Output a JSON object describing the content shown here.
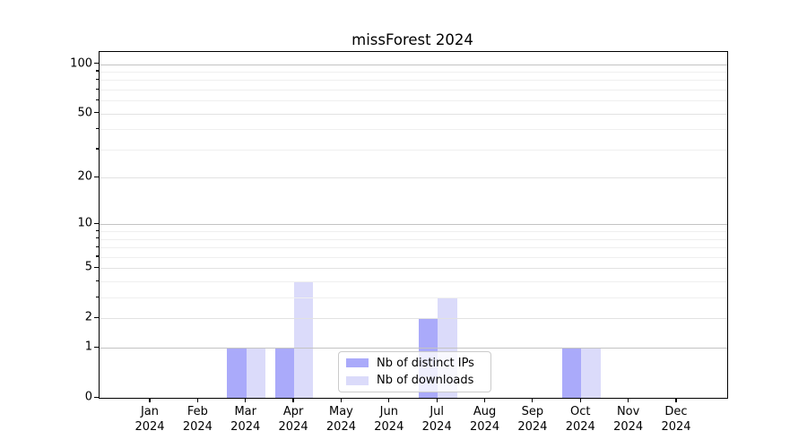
{
  "chart_data": {
    "type": "bar",
    "title": "missForest 2024",
    "year": "2024",
    "months": [
      "Jan",
      "Feb",
      "Mar",
      "Apr",
      "May",
      "Jun",
      "Jul",
      "Aug",
      "Sep",
      "Oct",
      "Nov",
      "Dec"
    ],
    "series": [
      {
        "name": "Nb of distinct IPs",
        "color": "#aaaafa",
        "values": [
          0,
          0,
          1,
          1,
          0,
          0,
          2,
          0,
          0,
          1,
          0,
          0
        ]
      },
      {
        "name": "Nb of downloads",
        "color": "#dbdbfa",
        "values": [
          0,
          0,
          1,
          4,
          0,
          0,
          3,
          0,
          0,
          1,
          0,
          0
        ]
      }
    ],
    "y_axis": {
      "scale": "log1p",
      "ticks": [
        0,
        1,
        2,
        5,
        10,
        20,
        50,
        100
      ],
      "minor_ticks": [
        3,
        4,
        6,
        7,
        8,
        9,
        30,
        40,
        60,
        70,
        80,
        90
      ],
      "ylim": [
        0,
        120
      ]
    },
    "x_axis": {
      "tick_label_line2": "2024"
    },
    "legend": {
      "position": "lower center"
    },
    "grid": "both"
  }
}
